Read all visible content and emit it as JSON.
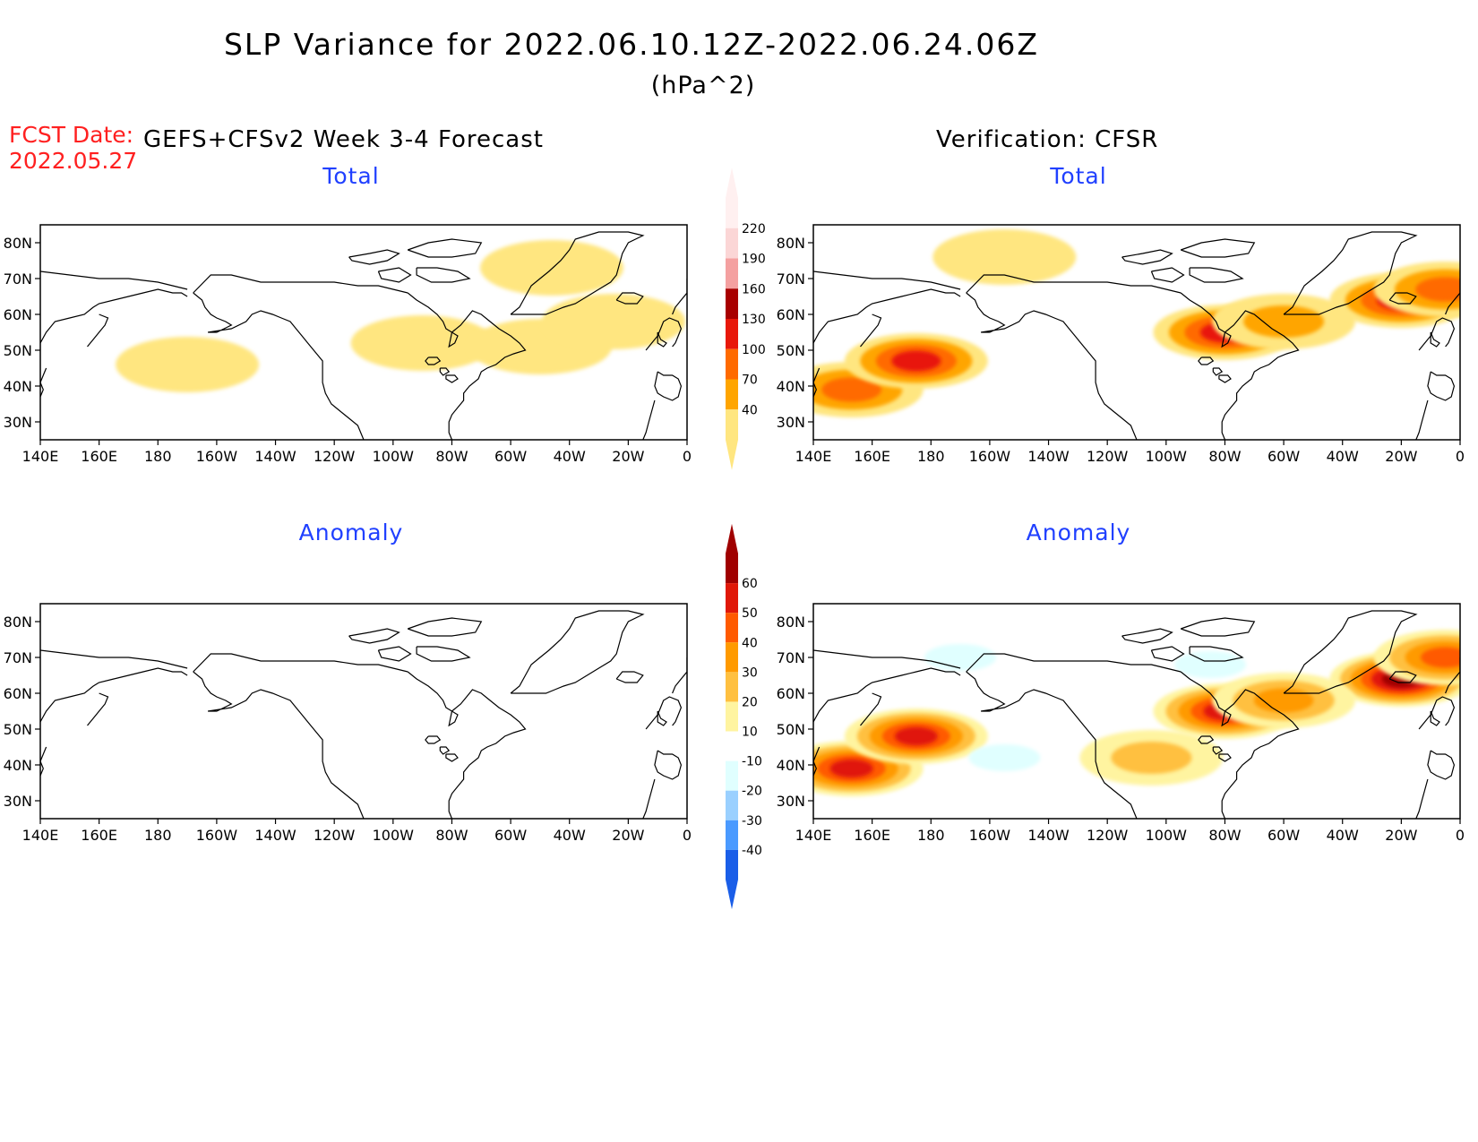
{
  "header": {
    "title": "SLP Variance for 2022.06.10.12Z-2022.06.24.06Z",
    "units": "(hPa^2)",
    "fcst_label": "FCST Date:",
    "fcst_date": "2022.05.27",
    "left_header": "GEFS+CFSv2 Week 3-4 Forecast",
    "right_header": "Verification: CFSR"
  },
  "panels": [
    {
      "id": "forecast-total",
      "title": "Total"
    },
    {
      "id": "verification-total",
      "title": "Total"
    },
    {
      "id": "forecast-anomaly",
      "title": "Anomaly"
    },
    {
      "id": "verification-anomaly",
      "title": "Anomaly"
    }
  ],
  "axes": {
    "lat_labels": [
      "80N",
      "70N",
      "60N",
      "50N",
      "40N",
      "30N"
    ],
    "lat_values": [
      80,
      70,
      60,
      50,
      40,
      30
    ],
    "lon_labels": [
      "140E",
      "160E",
      "180",
      "160W",
      "140W",
      "120W",
      "100W",
      "80W",
      "60W",
      "40W",
      "20W",
      "0"
    ],
    "lat_range": [
      25,
      85
    ],
    "lon_range_deg_east": [
      140,
      360
    ]
  },
  "colorbars": {
    "total": {
      "levels": [
        "40",
        "70",
        "100",
        "130",
        "160",
        "190",
        "220"
      ],
      "colors": [
        "#ffe680",
        "#ffa500",
        "#ff6a00",
        "#e8180a",
        "#a80000",
        "#f4a0a0",
        "#fbd6d6",
        "#fff0f0"
      ]
    },
    "anomaly": {
      "levels": [
        "60",
        "50",
        "40",
        "30",
        "20",
        "10",
        "-10",
        "-20",
        "-30",
        "-40"
      ],
      "colors": [
        "#a00000",
        "#e01808",
        "#ff5a00",
        "#ff9a00",
        "#ffc040",
        "#fff4a0",
        "#ffffff",
        "#e0ffff",
        "#9ad0ff",
        "#4a9aff",
        "#1a5ee8"
      ]
    }
  },
  "chart_data": [
    {
      "type": "heatmap",
      "panel": "forecast-total",
      "title": "Total",
      "blobs": [
        {
          "lon": 190,
          "lat": 46,
          "value": 50
        },
        {
          "lon": 270,
          "lat": 52,
          "value": 55
        },
        {
          "lon": 310,
          "lat": 51,
          "value": 50
        },
        {
          "lon": 335,
          "lat": 58,
          "value": 50
        },
        {
          "lon": 314,
          "lat": 73,
          "value": 45
        }
      ]
    },
    {
      "type": "heatmap",
      "panel": "verification-total",
      "title": "Total",
      "blobs": [
        {
          "lon": 153,
          "lat": 39,
          "value": 100
        },
        {
          "lon": 175,
          "lat": 47,
          "value": 130
        },
        {
          "lon": 280,
          "lat": 55,
          "value": 130
        },
        {
          "lon": 300,
          "lat": 58,
          "value": 90
        },
        {
          "lon": 340,
          "lat": 64,
          "value": 150
        },
        {
          "lon": 355,
          "lat": 67,
          "value": 110
        },
        {
          "lon": 205,
          "lat": 76,
          "value": 50
        }
      ]
    },
    {
      "type": "heatmap",
      "panel": "forecast-anomaly",
      "title": "Anomaly",
      "blobs": []
    },
    {
      "type": "heatmap",
      "panel": "verification-anomaly",
      "title": "Anomaly",
      "blobs": [
        {
          "lon": 153,
          "lat": 39,
          "value": 55
        },
        {
          "lon": 175,
          "lat": 48,
          "value": 55
        },
        {
          "lon": 280,
          "lat": 55,
          "value": 55
        },
        {
          "lon": 340,
          "lat": 64,
          "value": 60
        },
        {
          "lon": 355,
          "lat": 70,
          "value": 45
        },
        {
          "lon": 300,
          "lat": 58,
          "value": 30
        },
        {
          "lon": 255,
          "lat": 42,
          "value": 25
        },
        {
          "lon": 190,
          "lat": 70,
          "value": -15
        },
        {
          "lon": 275,
          "lat": 68,
          "value": -15
        },
        {
          "lon": 205,
          "lat": 42,
          "value": -15
        }
      ]
    }
  ]
}
